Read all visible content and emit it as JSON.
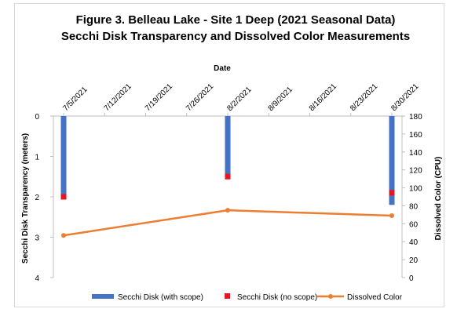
{
  "chart_data": {
    "type": "bar",
    "title": "Figure 3. Belleau Lake - Site 1 Deep (2021 Seasonal Data)",
    "subtitle": "Secchi Disk Transparency and Dissolved Color Measurements",
    "xlabel": "Date",
    "x_ticks": [
      "7/5/2021",
      "7/12/2021",
      "7/19/2021",
      "7/26/2021",
      "8/2/2021",
      "8/9/2021",
      "8/16/2021",
      "8/23/2021",
      "8/30/2021"
    ],
    "x_position": "top",
    "ylabel_left": "Secchi Disk Transparency (meters)",
    "ylim_left": [
      0,
      4
    ],
    "left_axis_inverted": true,
    "y_ticks_left": [
      "0",
      "1",
      "2",
      "3",
      "4"
    ],
    "ylabel_right": "Dissolved Color (CPU)",
    "ylim_right": [
      0,
      180
    ],
    "y_ticks_right": [
      "0",
      "20",
      "40",
      "60",
      "80",
      "100",
      "120",
      "140",
      "160",
      "180"
    ],
    "grid": false,
    "legend_position": "bottom",
    "series": [
      {
        "name": "Secchi Disk (with scope)",
        "type": "bar",
        "axis": "left",
        "color": "#4472C4",
        "points": [
          {
            "x": "7/5/2021",
            "y": 2.0
          },
          {
            "x": "8/2/2021",
            "y": 1.45
          },
          {
            "x": "8/30/2021",
            "y": 2.2
          }
        ]
      },
      {
        "name": "Secchi Disk (no scope)",
        "type": "marker",
        "axis": "left",
        "color": "#E8141E",
        "points": [
          {
            "x": "7/5/2021",
            "y": 2.0
          },
          {
            "x": "8/2/2021",
            "y": 1.5
          },
          {
            "x": "8/30/2021",
            "y": 1.9
          }
        ]
      },
      {
        "name": "Dissolved Color",
        "type": "line",
        "axis": "right",
        "color": "#ED7D31",
        "points": [
          {
            "x": "7/5/2021",
            "y": 47
          },
          {
            "x": "8/2/2021",
            "y": 75
          },
          {
            "x": "8/30/2021",
            "y": 69
          }
        ]
      }
    ]
  }
}
